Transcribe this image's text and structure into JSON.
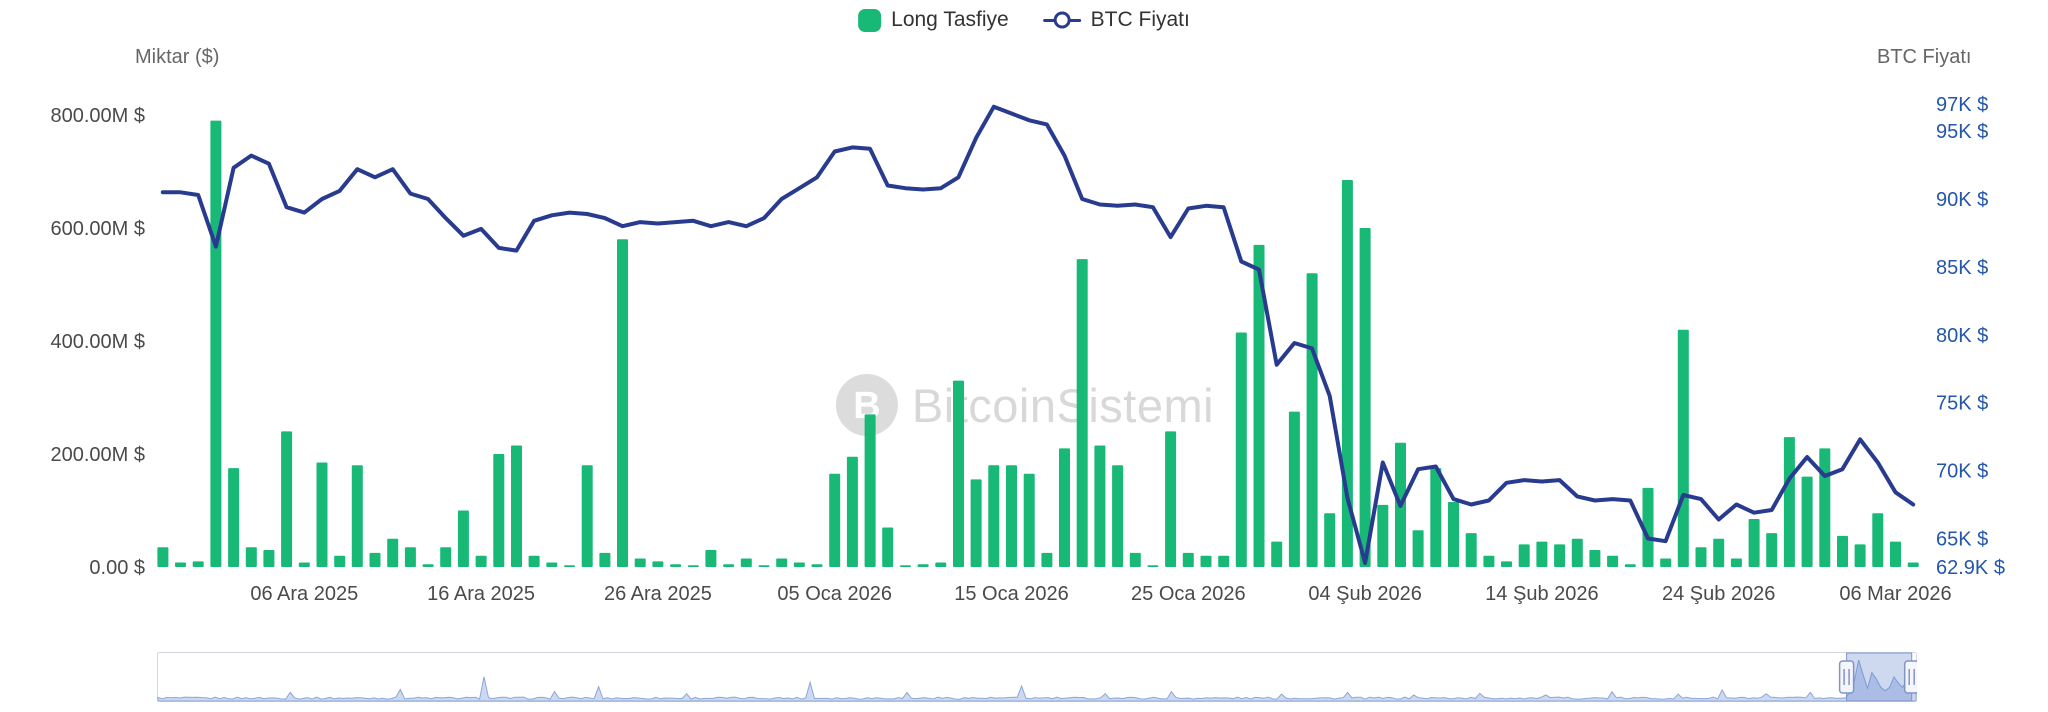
{
  "legend": {
    "long_label": "Long Tasfiye",
    "btc_label": "BTC Fiyatı"
  },
  "left_axis": {
    "title": "Miktar ($)",
    "ticks": [
      {
        "value": 800,
        "label": "800.00M $"
      },
      {
        "value": 600,
        "label": "600.00M $"
      },
      {
        "value": 400,
        "label": "400.00M $"
      },
      {
        "value": 200,
        "label": "200.00M $"
      },
      {
        "value": 0,
        "label": "0.00 $"
      }
    ]
  },
  "right_axis": {
    "title": "BTC Fiyatı",
    "ticks": [
      {
        "value": 97,
        "label": "97K $"
      },
      {
        "value": 95,
        "label": "95K $"
      },
      {
        "value": 90,
        "label": "90K $"
      },
      {
        "value": 85,
        "label": "85K $"
      },
      {
        "value": 80,
        "label": "80K $"
      },
      {
        "value": 75,
        "label": "75K $"
      },
      {
        "value": 70,
        "label": "70K $"
      },
      {
        "value": 65,
        "label": "65K $"
      },
      {
        "value": 62.9,
        "label": "62.9K $"
      }
    ]
  },
  "watermark": {
    "text": "BitcoinSistemi",
    "logo_letter": "B"
  },
  "colors": {
    "bar_green": "#18B877",
    "line_navy": "#283B8F",
    "right_axis_blue": "#2456AA",
    "axis_text": "#4A4A4A",
    "axis_title_gray": "#666666",
    "watermark_gray": "#D8D8D8",
    "nav_fill": "#CDD9F0",
    "nav_stroke": "#8CA6D9",
    "nav_mask": "rgba(93,125,201,0.30)",
    "nav_border": "#D3D7E0",
    "handle_fill": "#F4F6FB",
    "handle_border": "#8294C6"
  },
  "navigator": {
    "range_start_frac": 0.96,
    "range_end_frac": 0.997
  },
  "chart_data": {
    "type": "bar",
    "subtype": "combo-bar-line",
    "grid": false,
    "legend_position": "top-center",
    "left_ylim": [
      0,
      800
    ],
    "left_unit": "M $",
    "right_ylim": [
      62.9,
      97
    ],
    "right_unit": "K $",
    "x_tick_labels": [
      "06 Ara 2025",
      "16 Ara 2025",
      "26 Ara 2025",
      "05 Oca 2026",
      "15 Oca 2026",
      "25 Oca 2026",
      "04 Şub 2026",
      "14 Şub 2026",
      "24 Şub 2026",
      "06 Mar 2026"
    ],
    "x_tick_indices": [
      8,
      18,
      28,
      38,
      48,
      58,
      68,
      78,
      88,
      98
    ],
    "series": [
      {
        "name": "Long Tasfiye",
        "type": "bar",
        "unit": "M $",
        "values": [
          35,
          8,
          10,
          790,
          175,
          35,
          30,
          240,
          8,
          185,
          20,
          180,
          25,
          50,
          35,
          5,
          35,
          100,
          20,
          200,
          215,
          20,
          8,
          3,
          180,
          25,
          580,
          15,
          10,
          5,
          3,
          30,
          5,
          15,
          3,
          15,
          8,
          5,
          165,
          195,
          270,
          70,
          3,
          5,
          8,
          330,
          155,
          180,
          180,
          165,
          25,
          210,
          545,
          215,
          180,
          25,
          3,
          240,
          25,
          20,
          20,
          415,
          570,
          45,
          275,
          520,
          95,
          685,
          600,
          110,
          220,
          65,
          175,
          115,
          60,
          20,
          10,
          40,
          45,
          40,
          50,
          30,
          20,
          5,
          140,
          15,
          420,
          35,
          50,
          15,
          85,
          60,
          230,
          160,
          210,
          55,
          40,
          95,
          45,
          8
        ]
      },
      {
        "name": "BTC Fiyatı",
        "type": "line",
        "unit": "K $",
        "values": [
          90.5,
          90.5,
          90.3,
          86.5,
          92.3,
          93.2,
          92.6,
          89.4,
          89.0,
          90.0,
          90.6,
          92.2,
          91.6,
          92.2,
          90.4,
          90.0,
          88.6,
          87.3,
          87.8,
          86.4,
          86.2,
          88.4,
          88.8,
          89.0,
          88.9,
          88.6,
          88.0,
          88.3,
          88.2,
          88.3,
          88.4,
          88.0,
          88.3,
          88.0,
          88.6,
          90.0,
          90.8,
          91.6,
          93.5,
          93.8,
          93.7,
          91.0,
          90.8,
          90.7,
          90.8,
          91.6,
          94.5,
          96.8,
          96.3,
          95.8,
          95.5,
          93.2,
          90.0,
          89.6,
          89.5,
          89.6,
          89.4,
          87.2,
          89.3,
          89.5,
          89.4,
          85.4,
          84.8,
          77.8,
          79.4,
          79.0,
          75.5,
          68.0,
          63.2,
          70.6,
          67.4,
          70.1,
          70.3,
          67.9,
          67.5,
          67.8,
          69.1,
          69.3,
          69.2,
          69.3,
          68.1,
          67.8,
          67.9,
          67.8,
          65.0,
          64.8,
          68.2,
          67.9,
          66.4,
          67.5,
          66.9,
          67.1,
          69.4,
          71.0,
          69.6,
          70.1,
          72.3,
          70.6,
          68.4,
          67.5
        ]
      }
    ]
  }
}
